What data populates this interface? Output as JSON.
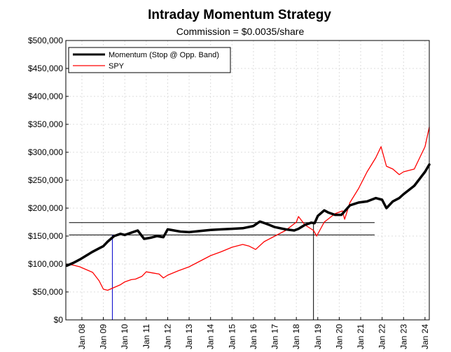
{
  "chart_data": {
    "type": "line",
    "title": "Intraday Momentum Strategy",
    "subtitle": "Commission = $0.0035/share",
    "xlabel": "",
    "ylabel": "",
    "xlim": [
      2007.25,
      2024.2
    ],
    "ylim": [
      0,
      500000
    ],
    "grid": true,
    "legend_position": "top-left",
    "y_ticks": [
      0,
      50000,
      100000,
      150000,
      200000,
      250000,
      300000,
      350000,
      400000,
      450000,
      500000
    ],
    "y_tick_labels": [
      "$0",
      "$50,000",
      "$100,000",
      "$150,000",
      "$200,000",
      "$250,000",
      "$300,000",
      "$350,000",
      "$400,000",
      "$450,000",
      "$500,000"
    ],
    "x_ticks": [
      2008,
      2009,
      2010,
      2011,
      2012,
      2013,
      2014,
      2015,
      2016,
      2017,
      2018,
      2019,
      2020,
      2021,
      2022,
      2023,
      2024
    ],
    "x_tick_labels": [
      "Jan 08",
      "Jan 09",
      "Jan 10",
      "Jan 11",
      "Jan 12",
      "Jan 13",
      "Jan 14",
      "Jan 15",
      "Jan 16",
      "Jan 17",
      "Jan 18",
      "Jan 19",
      "Jan 20",
      "Jan 21",
      "Jan 22",
      "Jan 23",
      "Jan 24"
    ],
    "series": [
      {
        "name": "Momentum (Stop @ Opp. Band)",
        "color": "#000000",
        "x": [
          2007.3,
          2007.6,
          2007.9,
          2008.2,
          2008.5,
          2008.8,
          2009.0,
          2009.2,
          2009.5,
          2009.8,
          2010.0,
          2010.3,
          2010.6,
          2010.9,
          2011.2,
          2011.5,
          2011.8,
          2012.0,
          2012.3,
          2012.6,
          2013.0,
          2013.5,
          2014.0,
          2014.5,
          2015.0,
          2015.5,
          2016.0,
          2016.3,
          2016.6,
          2017.0,
          2017.5,
          2017.9,
          2018.1,
          2018.4,
          2018.7,
          2018.85,
          2019.0,
          2019.3,
          2019.5,
          2019.8,
          2020.1,
          2020.2,
          2020.5,
          2020.9,
          2021.3,
          2021.7,
          2022.0,
          2022.2,
          2022.5,
          2022.8,
          2023.0,
          2023.5,
          2024.0,
          2024.2
        ],
        "values": [
          97000,
          102000,
          108000,
          115000,
          122000,
          128000,
          132000,
          140000,
          150000,
          154000,
          152000,
          156000,
          160000,
          145000,
          147000,
          150000,
          148000,
          162000,
          160000,
          158000,
          157000,
          159000,
          161000,
          162000,
          163000,
          164000,
          168000,
          176000,
          172000,
          166000,
          162000,
          160000,
          163000,
          170000,
          174000,
          173000,
          186000,
          196000,
          192000,
          188000,
          188000,
          192000,
          205000,
          210000,
          212000,
          218000,
          215000,
          200000,
          212000,
          218000,
          225000,
          240000,
          265000,
          278000
        ]
      },
      {
        "name": "SPY",
        "color": "#ff0000",
        "x": [
          2007.3,
          2007.6,
          2007.9,
          2008.2,
          2008.5,
          2008.8,
          2009.0,
          2009.2,
          2009.5,
          2009.8,
          2010.0,
          2010.3,
          2010.5,
          2010.8,
          2011.0,
          2011.3,
          2011.6,
          2011.8,
          2012.0,
          2012.5,
          2013.0,
          2013.5,
          2014.0,
          2014.5,
          2015.0,
          2015.5,
          2015.8,
          2016.1,
          2016.5,
          2017.0,
          2017.5,
          2018.0,
          2018.1,
          2018.4,
          2018.8,
          2018.95,
          2019.3,
          2019.8,
          2020.15,
          2020.25,
          2020.5,
          2020.9,
          2021.3,
          2021.7,
          2021.95,
          2022.2,
          2022.5,
          2022.8,
          2023.0,
          2023.5,
          2024.0,
          2024.2
        ],
        "values": [
          100000,
          98000,
          95000,
          90000,
          85000,
          70000,
          55000,
          53000,
          58000,
          63000,
          68000,
          72000,
          73000,
          78000,
          86000,
          84000,
          82000,
          75000,
          80000,
          88000,
          95000,
          105000,
          115000,
          122000,
          130000,
          135000,
          132000,
          126000,
          140000,
          150000,
          160000,
          175000,
          185000,
          170000,
          160000,
          150000,
          175000,
          190000,
          195000,
          180000,
          210000,
          235000,
          265000,
          290000,
          310000,
          275000,
          270000,
          260000,
          265000,
          270000,
          310000,
          345000
        ]
      }
    ],
    "reference_lines": [
      {
        "orientation": "horizontal",
        "y": 174000,
        "x_from": 2007.4,
        "x_to": 2021.65,
        "color": "#000000"
      },
      {
        "orientation": "horizontal",
        "y": 152000,
        "x_from": 2007.4,
        "x_to": 2021.65,
        "color": "#000000"
      },
      {
        "orientation": "vertical",
        "x": 2009.42,
        "y_from": 0,
        "y_to": 152000,
        "color": "#0000cc"
      },
      {
        "orientation": "vertical",
        "x": 2018.8,
        "y_from": 0,
        "y_to": 174000,
        "color": "#000000"
      }
    ]
  }
}
